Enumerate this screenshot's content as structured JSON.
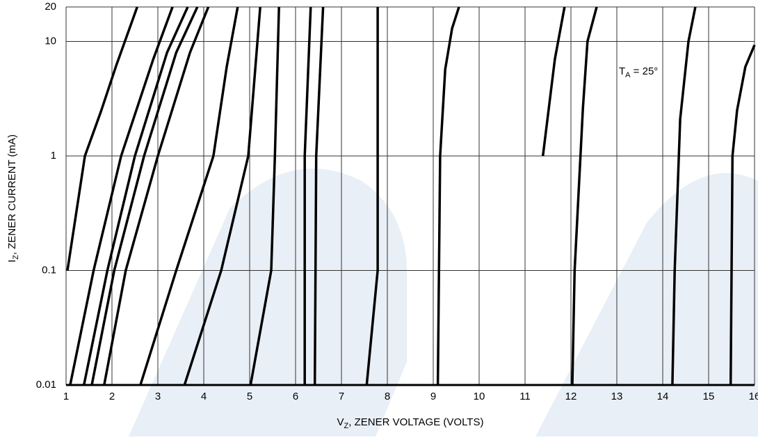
{
  "chart_data": {
    "type": "line",
    "xlabel": {
      "main": "V",
      "sub": "Z",
      "rest": ", ZENER VOLTAGE (VOLTS)"
    },
    "ylabel": {
      "main": "I",
      "sub": "Z",
      "rest": ", ZENER CURRENT (mA)"
    },
    "annotation": {
      "main": "T",
      "sub": "A",
      "rest": " = 25°"
    },
    "yscale": "log",
    "grid": true,
    "xlim": [
      1,
      16
    ],
    "xticks": [
      1,
      2,
      3,
      4,
      5,
      6,
      7,
      8,
      9,
      10,
      11,
      12,
      13,
      14,
      15,
      16
    ],
    "ylim": [
      0.01,
      20
    ],
    "yticks": [
      0.01,
      0.1,
      1,
      10,
      20
    ],
    "series": [
      {
        "color": "#000000",
        "x": [
          1.03,
          1.41,
          1.76,
          2.09,
          2.55
        ],
        "values": [
          0.1,
          1,
          2.45,
          6.1,
          20
        ]
      },
      {
        "color": "#000000",
        "x": [
          1.09,
          1.6,
          2.2,
          2.9,
          3.32
        ],
        "values": [
          0.01,
          0.1,
          1,
          7,
          20
        ]
      },
      {
        "color": "#000000",
        "x": [
          1.39,
          1.9,
          2.5,
          3.2,
          3.65
        ],
        "values": [
          0.01,
          0.1,
          1,
          8,
          20
        ]
      },
      {
        "color": "#000000",
        "x": [
          1.56,
          2.05,
          2.7,
          3.4,
          3.86
        ],
        "values": [
          0.01,
          0.1,
          1,
          8,
          20
        ]
      },
      {
        "color": "#000000",
        "x": [
          1.83,
          2.3,
          3.0,
          3.7,
          4.1
        ],
        "values": [
          0.01,
          0.1,
          1,
          8,
          20
        ]
      },
      {
        "color": "#000000",
        "x": [
          2.62,
          3.4,
          4.21,
          4.5,
          4.74
        ],
        "values": [
          0.01,
          0.1,
          1,
          6,
          20
        ]
      },
      {
        "color": "#000000",
        "x": [
          3.58,
          4.38,
          4.97,
          5.23
        ],
        "values": [
          0.01,
          0.1,
          1,
          20
        ]
      },
      {
        "color": "#000000",
        "x": [
          5.02,
          5.47,
          5.55,
          5.64
        ],
        "values": [
          0.01,
          0.1,
          1,
          20
        ]
      },
      {
        "color": "#000000",
        "x": [
          6.2,
          6.2,
          6.33
        ],
        "values": [
          0.01,
          1,
          20
        ]
      },
      {
        "color": "#000000",
        "x": [
          6.42,
          6.45,
          6.6
        ],
        "values": [
          0.01,
          1,
          20
        ]
      },
      {
        "color": "#000000",
        "x": [
          7.55,
          7.79,
          7.79
        ],
        "values": [
          0.01,
          0.1,
          20
        ]
      },
      {
        "color": "#000000",
        "x": [
          9.1,
          9.15,
          9.26,
          9.41,
          9.56
        ],
        "values": [
          0.01,
          1,
          5.7,
          13,
          20
        ]
      },
      {
        "color": "#000000",
        "x": [
          11.39,
          11.65,
          11.86
        ],
        "values": [
          1,
          7,
          20
        ]
      },
      {
        "color": "#000000",
        "x": [
          12.03,
          12.08,
          12.26,
          12.36,
          12.56
        ],
        "values": [
          0.01,
          0.1,
          2.6,
          10,
          20
        ]
      },
      {
        "color": "#000000",
        "x": [
          14.21,
          14.26,
          14.38,
          14.56,
          14.71
        ],
        "values": [
          0.01,
          0.1,
          2.1,
          10,
          20
        ]
      },
      {
        "color": "#000000",
        "x": [
          15.48,
          15.52,
          15.62,
          15.8,
          16
        ],
        "values": [
          0.01,
          1,
          2.5,
          6,
          9.3
        ]
      }
    ]
  }
}
